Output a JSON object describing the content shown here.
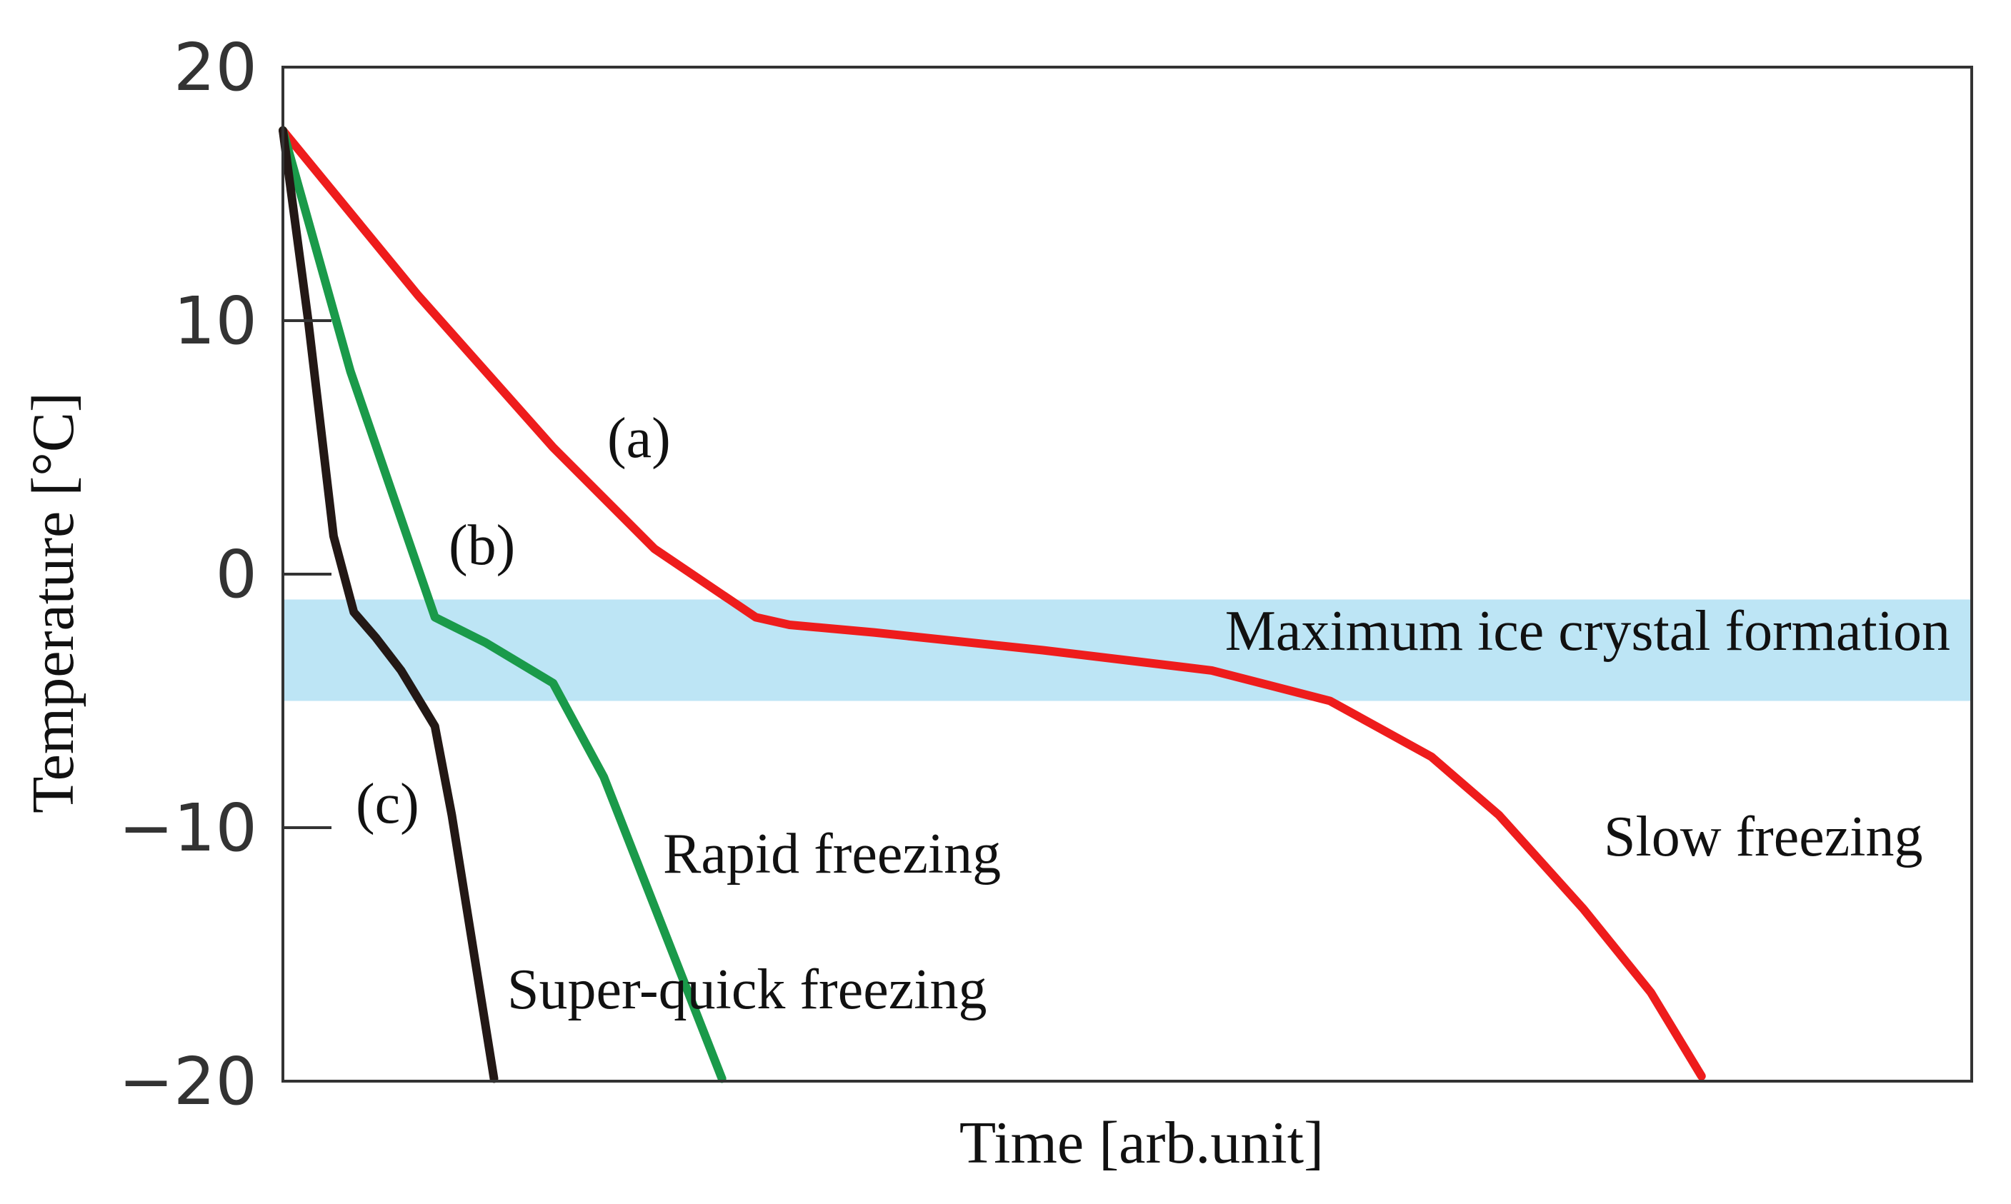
{
  "chart_data": {
    "type": "line",
    "title": "",
    "xlabel": "Time [arb.unit]",
    "ylabel": "Temperature [°C]",
    "xlim": [
      0,
      100
    ],
    "ylim": [
      -20,
      20
    ],
    "yticks": [
      20,
      10,
      0,
      -10,
      -20
    ],
    "ytick_labels": [
      "20",
      "10",
      "0",
      "−10",
      "−20"
    ],
    "grid": false,
    "band": {
      "label": "Maximum ice crystal formation",
      "y_range": [
        -5,
        -1
      ],
      "color": "#bde5f5"
    },
    "series": [
      {
        "key": "a",
        "marker_label": "(a)",
        "description_label": "Slow freezing",
        "color": "#ee1c1c",
        "x": [
          0,
          8,
          16,
          22,
          28,
          30,
          35,
          45,
          55,
          62,
          68,
          72,
          77,
          81,
          84
        ],
        "y": [
          17.5,
          11,
          5,
          1,
          -1.7,
          -2.0,
          -2.3,
          -3.0,
          -3.8,
          -5.0,
          -7.2,
          -9.5,
          -13.2,
          -16.5,
          -19.8
        ]
      },
      {
        "key": "b",
        "marker_label": "(b)",
        "description_label": "Rapid freezing",
        "color": "#1a9a4a",
        "x": [
          0,
          4,
          9,
          12,
          16,
          19,
          26
        ],
        "y": [
          17.5,
          8,
          -1.7,
          -2.7,
          -4.3,
          -8.0,
          -19.9
        ]
      },
      {
        "key": "c",
        "marker_label": "(c)",
        "description_label": "Super-quick freezing",
        "color": "#231815",
        "x": [
          0,
          1.5,
          3,
          4.2,
          5.5,
          7,
          9,
          10,
          12.5
        ],
        "y": [
          17.5,
          10,
          1.5,
          -1.5,
          -2.5,
          -3.8,
          -6.0,
          -9.5,
          -19.9
        ]
      }
    ]
  }
}
